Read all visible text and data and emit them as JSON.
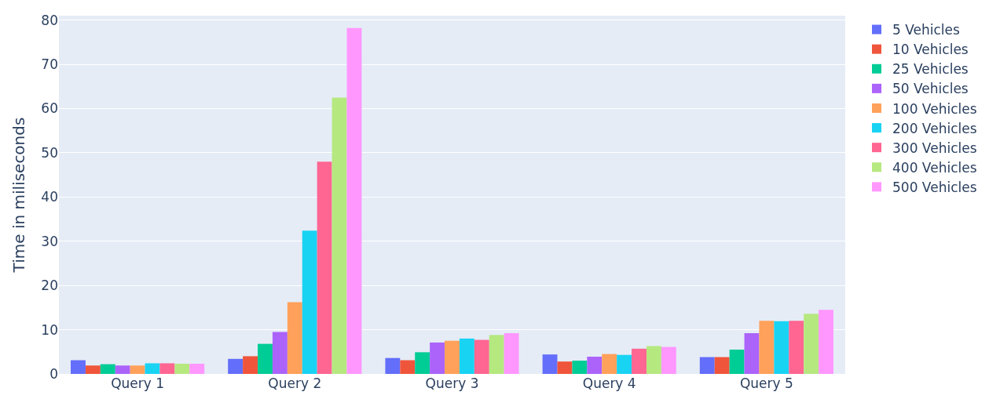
{
  "chart_data": {
    "type": "bar",
    "ylabel": "Time in miliseconds",
    "categories": [
      "Query 1",
      "Query 2",
      "Query 3",
      "Query 4",
      "Query 5"
    ],
    "series": [
      {
        "name": "5 Vehicles",
        "color": "#636efa",
        "values": [
          3.1,
          3.4,
          3.6,
          4.4,
          3.8
        ]
      },
      {
        "name": "10 Vehicles",
        "color": "#ef553b",
        "values": [
          1.9,
          4.0,
          3.1,
          2.8,
          3.8
        ]
      },
      {
        "name": "25 Vehicles",
        "color": "#00cc96",
        "values": [
          2.2,
          6.8,
          4.9,
          3.0,
          5.5
        ]
      },
      {
        "name": "50 Vehicles",
        "color": "#ab63fa",
        "values": [
          1.9,
          9.5,
          7.1,
          3.9,
          9.2
        ]
      },
      {
        "name": "100 Vehicles",
        "color": "#ffa15a",
        "values": [
          1.9,
          16.2,
          7.5,
          4.5,
          12.0
        ]
      },
      {
        "name": "200 Vehicles",
        "color": "#19d3f3",
        "values": [
          2.4,
          32.4,
          8.0,
          4.3,
          11.9
        ]
      },
      {
        "name": "300 Vehicles",
        "color": "#ff6692",
        "values": [
          2.4,
          48.0,
          7.7,
          5.7,
          12.0
        ]
      },
      {
        "name": "400 Vehicles",
        "color": "#b6e880",
        "values": [
          2.3,
          62.5,
          8.8,
          6.3,
          13.6
        ]
      },
      {
        "name": "500 Vehicles",
        "color": "#ff97ff",
        "values": [
          2.3,
          78.2,
          9.2,
          6.1,
          14.5
        ]
      }
    ],
    "ylim": [
      0,
      81
    ],
    "yticks": [
      0,
      10,
      20,
      30,
      40,
      50,
      60,
      70,
      80
    ],
    "grid": "y",
    "legend": "top right"
  }
}
